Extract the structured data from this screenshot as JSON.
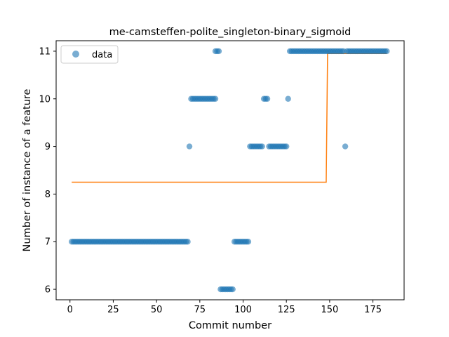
{
  "chart_data": {
    "type": "scatter",
    "title": "me-camsteffen-polite_singleton-binary_sigmoid",
    "xlabel": "Commit number",
    "ylabel": "Number of instance of a feature",
    "xlim": [
      -8,
      193
    ],
    "ylim": [
      5.78,
      11.22
    ],
    "xticks": [
      0,
      25,
      50,
      75,
      100,
      125,
      150,
      175
    ],
    "yticks": [
      6,
      7,
      8,
      9,
      10,
      11
    ],
    "grid": false,
    "legend": {
      "placement": "top-left",
      "entries": [
        "data"
      ]
    },
    "colors": {
      "data": "#1f77b4",
      "fit": "#ff7f0e"
    },
    "series": [
      {
        "name": "data",
        "kind": "scatter",
        "points": [
          [
            1,
            7
          ],
          [
            2,
            7
          ],
          [
            3,
            7
          ],
          [
            4,
            7
          ],
          [
            5,
            7
          ],
          [
            6,
            7
          ],
          [
            7,
            7
          ],
          [
            8,
            7
          ],
          [
            9,
            7
          ],
          [
            10,
            7
          ],
          [
            11,
            7
          ],
          [
            12,
            7
          ],
          [
            13,
            7
          ],
          [
            14,
            7
          ],
          [
            15,
            7
          ],
          [
            16,
            7
          ],
          [
            17,
            7
          ],
          [
            18,
            7
          ],
          [
            19,
            7
          ],
          [
            20,
            7
          ],
          [
            21,
            7
          ],
          [
            22,
            7
          ],
          [
            23,
            7
          ],
          [
            24,
            7
          ],
          [
            25,
            7
          ],
          [
            26,
            7
          ],
          [
            27,
            7
          ],
          [
            28,
            7
          ],
          [
            29,
            7
          ],
          [
            30,
            7
          ],
          [
            31,
            7
          ],
          [
            32,
            7
          ],
          [
            33,
            7
          ],
          [
            34,
            7
          ],
          [
            35,
            7
          ],
          [
            36,
            7
          ],
          [
            37,
            7
          ],
          [
            38,
            7
          ],
          [
            39,
            7
          ],
          [
            40,
            7
          ],
          [
            41,
            7
          ],
          [
            42,
            7
          ],
          [
            43,
            7
          ],
          [
            44,
            7
          ],
          [
            45,
            7
          ],
          [
            46,
            7
          ],
          [
            47,
            7
          ],
          [
            48,
            7
          ],
          [
            49,
            7
          ],
          [
            50,
            7
          ],
          [
            51,
            7
          ],
          [
            52,
            7
          ],
          [
            53,
            7
          ],
          [
            54,
            7
          ],
          [
            55,
            7
          ],
          [
            56,
            7
          ],
          [
            57,
            7
          ],
          [
            58,
            7
          ],
          [
            59,
            7
          ],
          [
            60,
            7
          ],
          [
            61,
            7
          ],
          [
            62,
            7
          ],
          [
            63,
            7
          ],
          [
            64,
            7
          ],
          [
            65,
            7
          ],
          [
            66,
            7
          ],
          [
            67,
            7
          ],
          [
            68,
            7
          ],
          [
            69,
            9
          ],
          [
            70,
            10
          ],
          [
            71,
            10
          ],
          [
            72,
            10
          ],
          [
            73,
            10
          ],
          [
            74,
            10
          ],
          [
            75,
            10
          ],
          [
            76,
            10
          ],
          [
            77,
            10
          ],
          [
            78,
            10
          ],
          [
            79,
            10
          ],
          [
            80,
            10
          ],
          [
            81,
            10
          ],
          [
            82,
            10
          ],
          [
            83,
            10
          ],
          [
            84,
            10
          ],
          [
            84,
            11
          ],
          [
            85,
            11
          ],
          [
            86,
            11
          ],
          [
            87,
            6
          ],
          [
            88,
            6
          ],
          [
            89,
            6
          ],
          [
            90,
            6
          ],
          [
            91,
            6
          ],
          [
            92,
            6
          ],
          [
            93,
            6
          ],
          [
            94,
            6
          ],
          [
            95,
            7
          ],
          [
            96,
            7
          ],
          [
            97,
            7
          ],
          [
            98,
            7
          ],
          [
            99,
            7
          ],
          [
            100,
            7
          ],
          [
            101,
            7
          ],
          [
            102,
            7
          ],
          [
            103,
            7
          ],
          [
            104,
            9
          ],
          [
            105,
            9
          ],
          [
            106,
            9
          ],
          [
            107,
            9
          ],
          [
            108,
            9
          ],
          [
            109,
            9
          ],
          [
            110,
            9
          ],
          [
            111,
            9
          ],
          [
            112,
            10
          ],
          [
            113,
            10
          ],
          [
            114,
            10
          ],
          [
            115,
            9
          ],
          [
            116,
            9
          ],
          [
            117,
            9
          ],
          [
            118,
            9
          ],
          [
            119,
            9
          ],
          [
            120,
            9
          ],
          [
            121,
            9
          ],
          [
            122,
            9
          ],
          [
            123,
            9
          ],
          [
            124,
            9
          ],
          [
            125,
            9
          ],
          [
            126,
            10
          ],
          [
            127,
            11
          ],
          [
            128,
            11
          ],
          [
            129,
            11
          ],
          [
            130,
            11
          ],
          [
            131,
            11
          ],
          [
            132,
            11
          ],
          [
            133,
            11
          ],
          [
            134,
            11
          ],
          [
            135,
            11
          ],
          [
            136,
            11
          ],
          [
            137,
            11
          ],
          [
            138,
            11
          ],
          [
            139,
            11
          ],
          [
            140,
            11
          ],
          [
            141,
            11
          ],
          [
            142,
            11
          ],
          [
            143,
            11
          ],
          [
            144,
            11
          ],
          [
            145,
            11
          ],
          [
            146,
            11
          ],
          [
            147,
            11
          ],
          [
            148,
            11
          ],
          [
            149,
            11
          ],
          [
            150,
            11
          ],
          [
            151,
            11
          ],
          [
            152,
            11
          ],
          [
            153,
            11
          ],
          [
            154,
            11
          ],
          [
            155,
            11
          ],
          [
            156,
            11
          ],
          [
            157,
            11
          ],
          [
            158,
            11
          ],
          [
            159,
            9
          ],
          [
            160,
            11
          ],
          [
            161,
            11
          ],
          [
            162,
            11
          ],
          [
            163,
            11
          ],
          [
            164,
            11
          ],
          [
            165,
            11
          ],
          [
            166,
            11
          ],
          [
            167,
            11
          ],
          [
            168,
            11
          ],
          [
            169,
            11
          ],
          [
            170,
            11
          ],
          [
            171,
            11
          ],
          [
            172,
            11
          ],
          [
            173,
            11
          ],
          [
            174,
            11
          ],
          [
            175,
            11
          ],
          [
            176,
            11
          ],
          [
            177,
            11
          ],
          [
            178,
            11
          ],
          [
            179,
            11
          ],
          [
            180,
            11
          ],
          [
            181,
            11
          ],
          [
            182,
            11
          ],
          [
            183,
            11
          ]
        ]
      },
      {
        "kind": "line",
        "points": [
          [
            1,
            8.25
          ],
          [
            148,
            8.25
          ],
          [
            148.8,
            10.95
          ],
          [
            183,
            10.95
          ]
        ]
      }
    ]
  }
}
